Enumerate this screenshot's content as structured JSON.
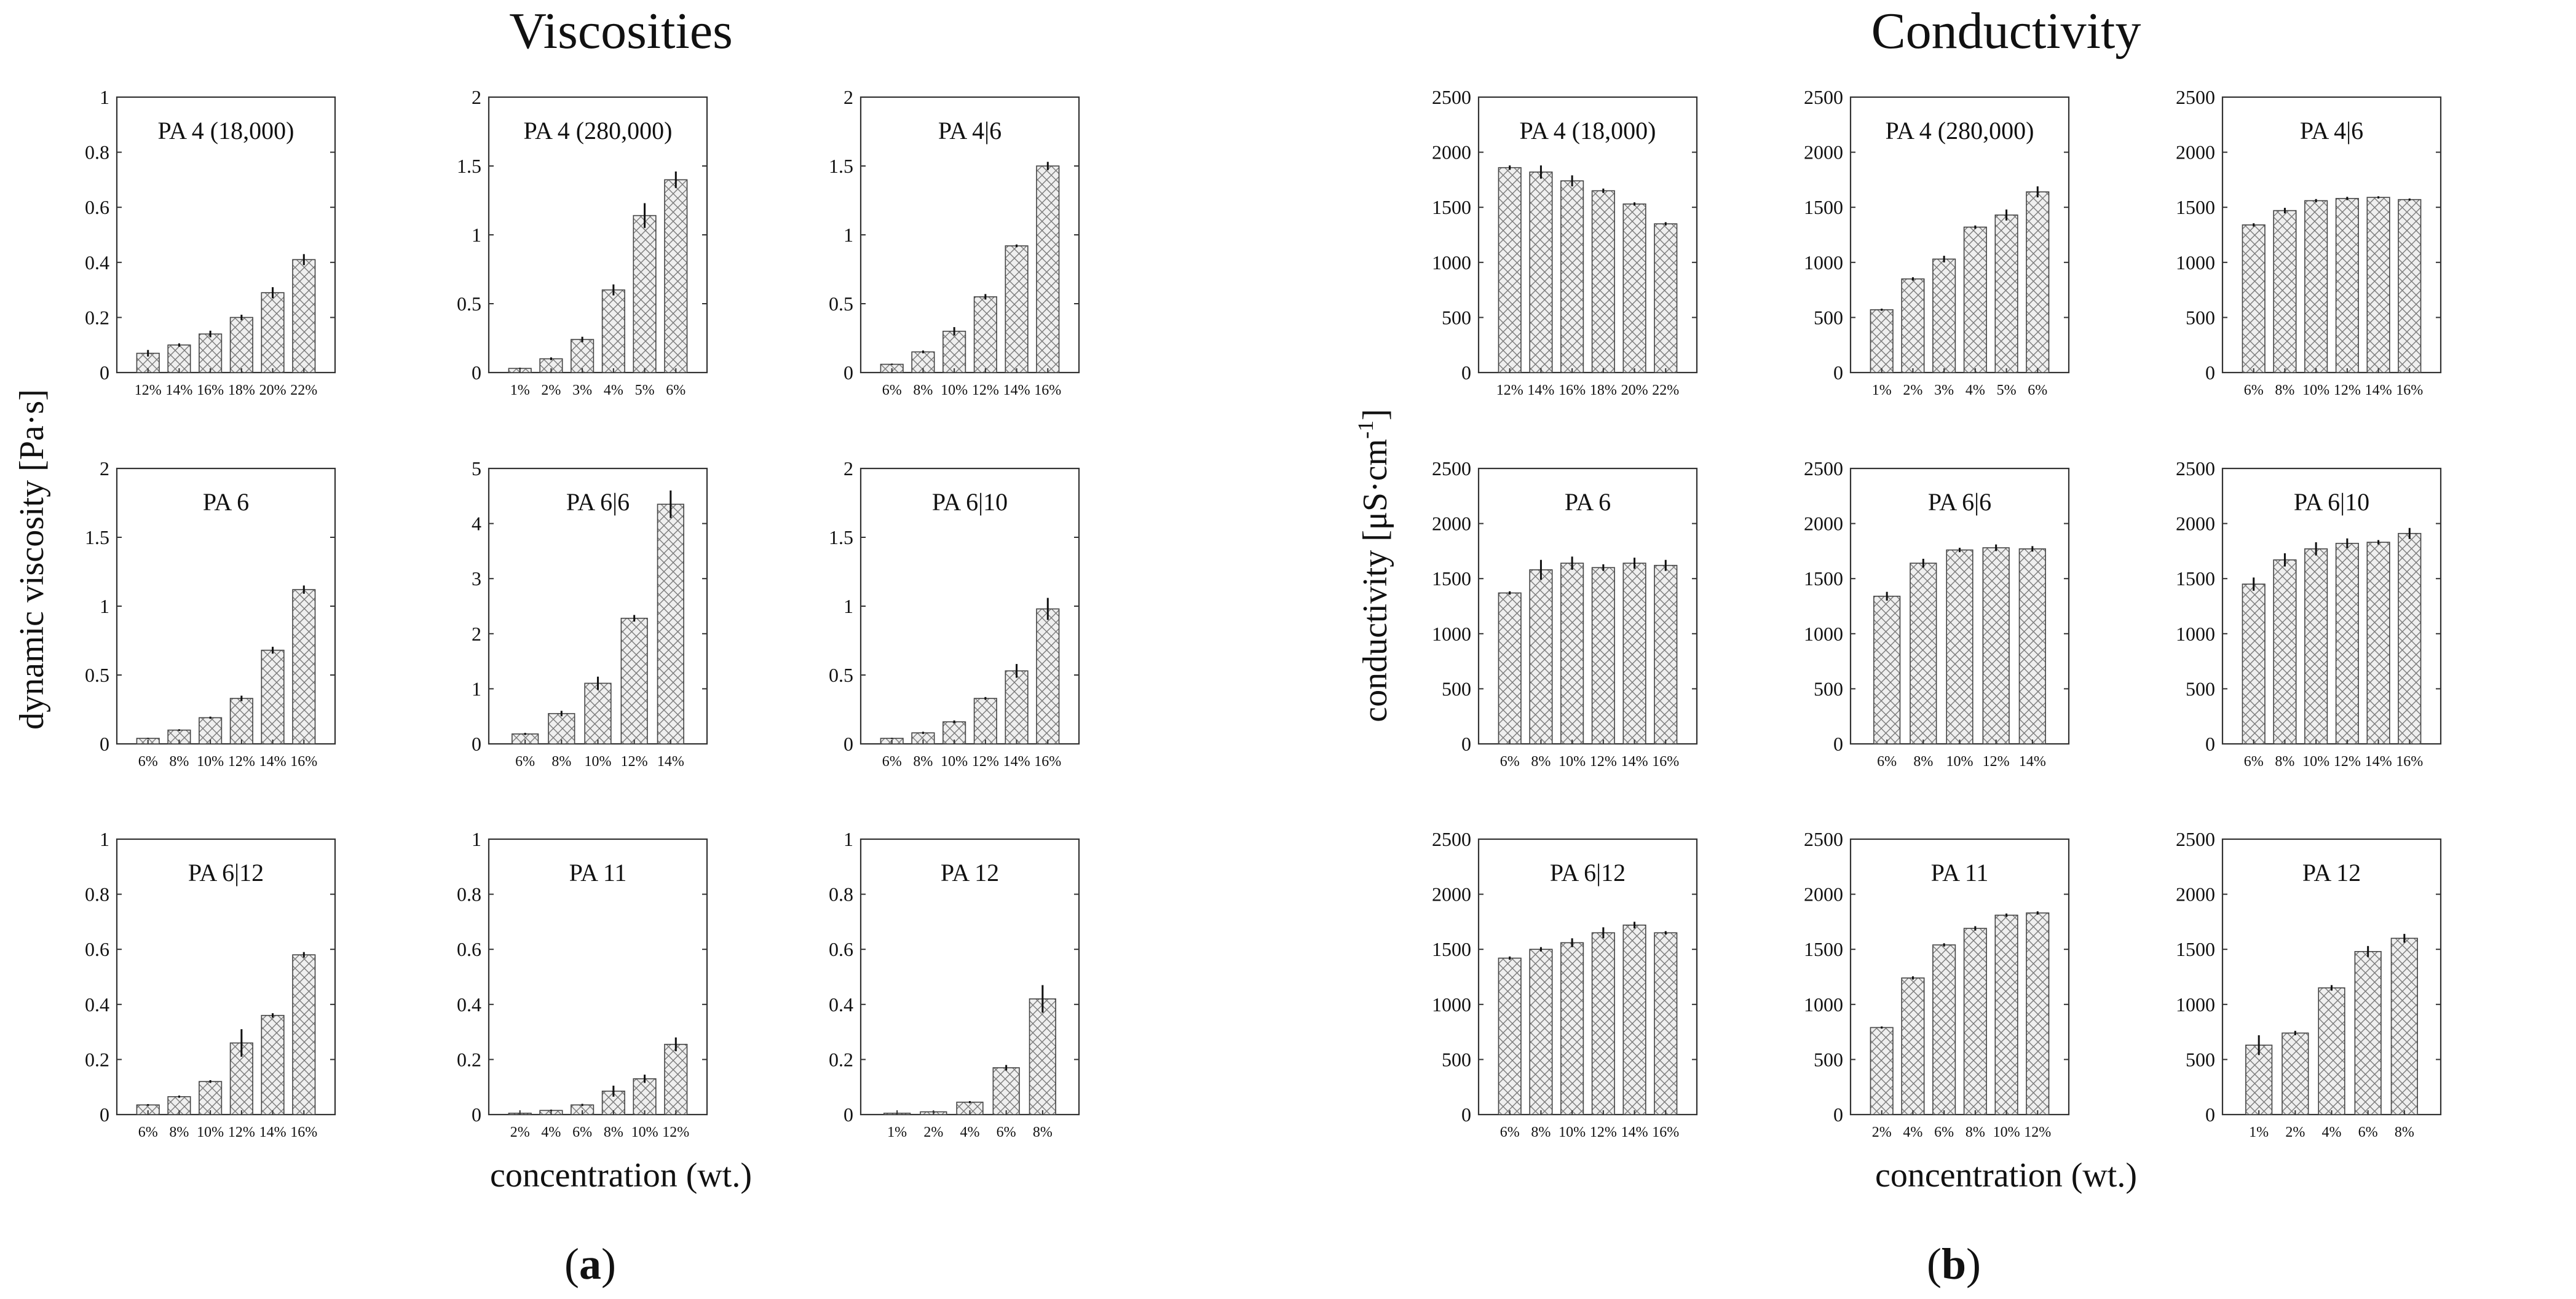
{
  "panel_a": {
    "title": "Viscosities",
    "ylabel": "dynamic viscosity [Pa·s]",
    "xlabel": "concentration (wt.)",
    "label": "(a)",
    "label_open": "(",
    "label_letter": "a",
    "label_close": ")"
  },
  "panel_b": {
    "title": "Conductivity",
    "ylabel": "conductivity [μS·cm",
    "ylabel_sup": "-1",
    "ylabel_close": "]",
    "xlabel": "concentration (wt.)",
    "label": "(b)",
    "label_open": "(",
    "label_letter": "b",
    "label_close": ")"
  },
  "chart_data": [
    {
      "type": "bar",
      "panel": "a",
      "title": "PA 4 (18,000)",
      "categories": [
        "12%",
        "14%",
        "16%",
        "18%",
        "20%",
        "22%"
      ],
      "values": [
        0.07,
        0.1,
        0.14,
        0.2,
        0.29,
        0.41
      ],
      "errors": [
        0.012,
        0.006,
        0.012,
        0.01,
        0.02,
        0.02
      ],
      "ylim": [
        0,
        1
      ],
      "yticks": [
        0,
        0.2,
        0.4,
        0.6,
        0.8,
        1
      ],
      "ytick_labels": [
        "0",
        "0.2",
        "0.4",
        "0.6",
        "0.8",
        "1"
      ]
    },
    {
      "type": "bar",
      "panel": "a",
      "title": "PA 4 (280,000)",
      "categories": [
        "1%",
        "2%",
        "3%",
        "4%",
        "5%",
        "6%"
      ],
      "values": [
        0.03,
        0.1,
        0.24,
        0.6,
        1.14,
        1.4
      ],
      "errors": [
        0.005,
        0.01,
        0.02,
        0.04,
        0.09,
        0.06
      ],
      "ylim": [
        0,
        2
      ],
      "yticks": [
        0,
        0.5,
        1,
        1.5,
        2
      ],
      "ytick_labels": [
        "0",
        "0.5",
        "1",
        "1.5",
        "2"
      ]
    },
    {
      "type": "bar",
      "panel": "a",
      "title": "PA 4|6",
      "categories": [
        "6%",
        "8%",
        "10%",
        "12%",
        "14%",
        "16%"
      ],
      "values": [
        0.06,
        0.15,
        0.3,
        0.55,
        0.92,
        1.5
      ],
      "errors": [
        0.005,
        0.01,
        0.03,
        0.02,
        0.01,
        0.03
      ],
      "ylim": [
        0,
        2
      ],
      "yticks": [
        0,
        0.5,
        1,
        1.5,
        2
      ],
      "ytick_labels": [
        "0",
        "0.5",
        "1",
        "1.5",
        "2"
      ]
    },
    {
      "type": "bar",
      "panel": "a",
      "title": "PA 6",
      "categories": [
        "6%",
        "8%",
        "10%",
        "12%",
        "14%",
        "16%"
      ],
      "values": [
        0.04,
        0.1,
        0.19,
        0.33,
        0.68,
        1.12
      ],
      "errors": [
        0.004,
        0.006,
        0.008,
        0.02,
        0.025,
        0.03
      ],
      "ylim": [
        0,
        2
      ],
      "yticks": [
        0,
        0.5,
        1,
        1.5,
        2
      ],
      "ytick_labels": [
        "0",
        "0.5",
        "1",
        "1.5",
        "2"
      ]
    },
    {
      "type": "bar",
      "panel": "a",
      "title": "PA 6|6",
      "categories": [
        "6%",
        "8%",
        "10%",
        "12%",
        "14%"
      ],
      "values": [
        0.18,
        0.55,
        1.1,
        2.28,
        4.35
      ],
      "errors": [
        0.02,
        0.05,
        0.12,
        0.06,
        0.25
      ],
      "ylim": [
        0,
        5
      ],
      "yticks": [
        0,
        1,
        2,
        3,
        4,
        5
      ],
      "ytick_labels": [
        "0",
        "1",
        "2",
        "3",
        "4",
        "5"
      ]
    },
    {
      "type": "bar",
      "panel": "a",
      "title": "PA 6|10",
      "categories": [
        "6%",
        "8%",
        "10%",
        "12%",
        "14%",
        "16%"
      ],
      "values": [
        0.04,
        0.08,
        0.16,
        0.33,
        0.53,
        0.98
      ],
      "errors": [
        0.004,
        0.008,
        0.01,
        0.01,
        0.05,
        0.08
      ],
      "ylim": [
        0,
        2
      ],
      "yticks": [
        0,
        0.5,
        1,
        1.5,
        2
      ],
      "ytick_labels": [
        "0",
        "0.5",
        "1",
        "1.5",
        "2"
      ]
    },
    {
      "type": "bar",
      "panel": "a",
      "title": "PA 6|12",
      "categories": [
        "6%",
        "8%",
        "10%",
        "12%",
        "14%",
        "16%"
      ],
      "values": [
        0.035,
        0.065,
        0.12,
        0.26,
        0.36,
        0.58
      ],
      "errors": [
        0.003,
        0.004,
        0.005,
        0.05,
        0.008,
        0.01
      ],
      "ylim": [
        0,
        1
      ],
      "yticks": [
        0,
        0.2,
        0.4,
        0.6,
        0.8,
        1
      ],
      "ytick_labels": [
        "0",
        "0.2",
        "0.4",
        "0.6",
        "0.8",
        "1"
      ]
    },
    {
      "type": "bar",
      "panel": "a",
      "title": "PA 11",
      "categories": [
        "2%",
        "4%",
        "6%",
        "8%",
        "10%",
        "12%"
      ],
      "values": [
        0.005,
        0.015,
        0.035,
        0.085,
        0.13,
        0.255
      ],
      "errors": [
        0.001,
        0.003,
        0.004,
        0.02,
        0.015,
        0.025
      ],
      "ylim": [
        0,
        1
      ],
      "yticks": [
        0,
        0.2,
        0.4,
        0.6,
        0.8,
        1
      ],
      "ytick_labels": [
        "0",
        "0.2",
        "0.4",
        "0.6",
        "0.8",
        "1"
      ]
    },
    {
      "type": "bar",
      "panel": "a",
      "title": "PA 12",
      "categories": [
        "1%",
        "2%",
        "4%",
        "6%",
        "8%"
      ],
      "values": [
        0.005,
        0.01,
        0.045,
        0.17,
        0.42
      ],
      "errors": [
        0.001,
        0.002,
        0.004,
        0.01,
        0.05
      ],
      "ylim": [
        0,
        1
      ],
      "yticks": [
        0,
        0.2,
        0.4,
        0.6,
        0.8,
        1
      ],
      "ytick_labels": [
        "0",
        "0.2",
        "0.4",
        "0.6",
        "0.8",
        "1"
      ]
    },
    {
      "type": "bar",
      "panel": "b",
      "title": "PA 4 (18,000)",
      "categories": [
        "12%",
        "14%",
        "16%",
        "18%",
        "20%",
        "22%"
      ],
      "values": [
        1860,
        1820,
        1740,
        1650,
        1530,
        1350
      ],
      "errors": [
        20,
        60,
        50,
        20,
        15,
        15
      ],
      "ylim": [
        0,
        2500
      ],
      "yticks": [
        0,
        500,
        1000,
        1500,
        2000,
        2500
      ],
      "ytick_labels": [
        "0",
        "500",
        "1000",
        "1500",
        "2000",
        "2500"
      ]
    },
    {
      "type": "bar",
      "panel": "b",
      "title": "PA 4 (280,000)",
      "categories": [
        "1%",
        "2%",
        "3%",
        "4%",
        "5%",
        "6%"
      ],
      "values": [
        570,
        850,
        1030,
        1320,
        1430,
        1640
      ],
      "errors": [
        10,
        15,
        30,
        15,
        50,
        50
      ],
      "ylim": [
        0,
        2500
      ],
      "yticks": [
        0,
        500,
        1000,
        1500,
        2000,
        2500
      ],
      "ytick_labels": [
        "0",
        "500",
        "1000",
        "1500",
        "2000",
        "2500"
      ]
    },
    {
      "type": "bar",
      "panel": "b",
      "title": "PA 4|6",
      "categories": [
        "6%",
        "8%",
        "10%",
        "12%",
        "14%",
        "16%"
      ],
      "values": [
        1340,
        1470,
        1560,
        1580,
        1590,
        1570
      ],
      "errors": [
        15,
        25,
        15,
        15,
        10,
        10
      ],
      "ylim": [
        0,
        2500
      ],
      "yticks": [
        0,
        500,
        1000,
        1500,
        2000,
        2500
      ],
      "ytick_labels": [
        "0",
        "500",
        "1000",
        "1500",
        "2000",
        "2500"
      ]
    },
    {
      "type": "bar",
      "panel": "b",
      "title": "PA 6",
      "categories": [
        "6%",
        "8%",
        "10%",
        "12%",
        "14%",
        "16%"
      ],
      "values": [
        1370,
        1580,
        1640,
        1600,
        1640,
        1620
      ],
      "errors": [
        15,
        90,
        60,
        30,
        50,
        50
      ],
      "ylim": [
        0,
        2500
      ],
      "yticks": [
        0,
        500,
        1000,
        1500,
        2000,
        2500
      ],
      "ytick_labels": [
        "0",
        "500",
        "1000",
        "1500",
        "2000",
        "2500"
      ]
    },
    {
      "type": "bar",
      "panel": "b",
      "title": "PA 6|6",
      "categories": [
        "6%",
        "8%",
        "10%",
        "12%",
        "14%"
      ],
      "values": [
        1340,
        1640,
        1760,
        1780,
        1770
      ],
      "errors": [
        40,
        40,
        20,
        30,
        25
      ],
      "ylim": [
        0,
        2500
      ],
      "yticks": [
        0,
        500,
        1000,
        1500,
        2000,
        2500
      ],
      "ytick_labels": [
        "0",
        "500",
        "1000",
        "1500",
        "2000",
        "2500"
      ]
    },
    {
      "type": "bar",
      "panel": "b",
      "title": "PA 6|10",
      "categories": [
        "6%",
        "8%",
        "10%",
        "12%",
        "14%",
        "16%"
      ],
      "values": [
        1450,
        1670,
        1770,
        1820,
        1830,
        1910
      ],
      "errors": [
        60,
        60,
        60,
        45,
        20,
        50
      ],
      "ylim": [
        0,
        2500
      ],
      "yticks": [
        0,
        500,
        1000,
        1500,
        2000,
        2500
      ],
      "ytick_labels": [
        "0",
        "500",
        "1000",
        "1500",
        "2000",
        "2500"
      ]
    },
    {
      "type": "bar",
      "panel": "b",
      "title": "PA 6|12",
      "categories": [
        "6%",
        "8%",
        "10%",
        "12%",
        "14%",
        "16%"
      ],
      "values": [
        1420,
        1500,
        1560,
        1650,
        1720,
        1650
      ],
      "errors": [
        15,
        20,
        40,
        50,
        30,
        15
      ],
      "ylim": [
        0,
        2500
      ],
      "yticks": [
        0,
        500,
        1000,
        1500,
        2000,
        2500
      ],
      "ytick_labels": [
        "0",
        "500",
        "1000",
        "1500",
        "2000",
        "2500"
      ]
    },
    {
      "type": "bar",
      "panel": "b",
      "title": "PA 11",
      "categories": [
        "2%",
        "4%",
        "6%",
        "8%",
        "10%",
        "12%"
      ],
      "values": [
        790,
        1240,
        1540,
        1690,
        1810,
        1830
      ],
      "errors": [
        10,
        15,
        15,
        20,
        15,
        15
      ],
      "ylim": [
        0,
        2500
      ],
      "yticks": [
        0,
        500,
        1000,
        1500,
        2000,
        2500
      ],
      "ytick_labels": [
        "0",
        "500",
        "1000",
        "1500",
        "2000",
        "2500"
      ]
    },
    {
      "type": "bar",
      "panel": "b",
      "title": "PA 12",
      "categories": [
        "1%",
        "2%",
        "4%",
        "6%",
        "8%"
      ],
      "values": [
        630,
        740,
        1150,
        1480,
        1600
      ],
      "errors": [
        90,
        20,
        25,
        50,
        40
      ],
      "ylim": [
        0,
        2500
      ],
      "yticks": [
        0,
        500,
        1000,
        1500,
        2000,
        2500
      ],
      "ytick_labels": [
        "0",
        "500",
        "1000",
        "1500",
        "2000",
        "2500"
      ]
    }
  ]
}
